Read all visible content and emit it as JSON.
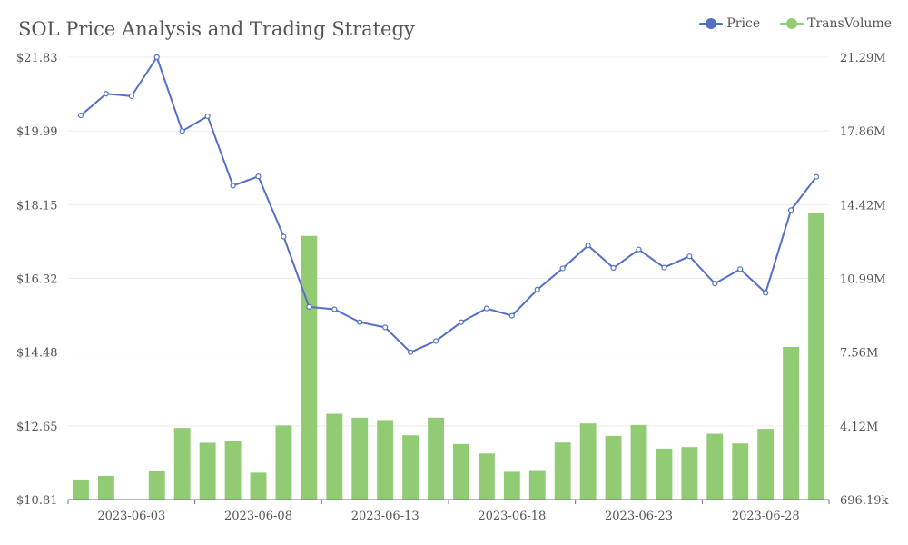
{
  "chart_data": {
    "type": "bar+line",
    "title": "SOL Price Analysis and Trading Strategy",
    "x": [
      "2023-06-01",
      "2023-06-02",
      "2023-06-03",
      "2023-06-04",
      "2023-06-05",
      "2023-06-06",
      "2023-06-07",
      "2023-06-08",
      "2023-06-09",
      "2023-06-10",
      "2023-06-11",
      "2023-06-12",
      "2023-06-13",
      "2023-06-14",
      "2023-06-15",
      "2023-06-16",
      "2023-06-17",
      "2023-06-18",
      "2023-06-19",
      "2023-06-20",
      "2023-06-21",
      "2023-06-22",
      "2023-06-23",
      "2023-06-24",
      "2023-06-25",
      "2023-06-26",
      "2023-06-27",
      "2023-06-28",
      "2023-06-29",
      "2023-06-30"
    ],
    "x_tick_labels": [
      "2023-06-03",
      "2023-06-08",
      "2023-06-13",
      "2023-06-18",
      "2023-06-23",
      "2023-06-28"
    ],
    "series": [
      {
        "name": "Price",
        "type": "line",
        "axis": "left",
        "color": "#5470c6",
        "values": [
          20.38,
          20.92,
          20.86,
          21.83,
          19.99,
          20.36,
          18.63,
          18.86,
          17.36,
          15.61,
          15.55,
          15.23,
          15.1,
          14.48,
          14.76,
          15.23,
          15.57,
          15.39,
          16.04,
          16.57,
          17.14,
          16.58,
          17.04,
          16.59,
          16.87,
          16.19,
          16.55,
          15.96,
          18.02,
          18.85
        ]
      },
      {
        "name": "TransVolume",
        "type": "bar",
        "axis": "right",
        "color": "#91cc75",
        "values": [
          1630000,
          1800000,
          696190,
          2050000,
          4030000,
          3340000,
          3440000,
          1950000,
          4150000,
          12970000,
          4690000,
          4510000,
          4400000,
          3690000,
          4510000,
          3280000,
          2840000,
          1990000,
          2070000,
          3350000,
          4240000,
          3660000,
          4170000,
          3070000,
          3140000,
          3760000,
          3310000,
          3990000,
          7800000,
          14030000
        ]
      }
    ],
    "y_left": {
      "min": 10.81,
      "max": 21.83,
      "tick_labels": [
        "$10.81",
        "$12.65",
        "$14.48",
        "$16.32",
        "$18.15",
        "$19.99",
        "$21.83"
      ]
    },
    "y_right": {
      "min": 696190,
      "max": 21290000,
      "tick_labels": [
        "696.19k",
        "4.12M",
        "7.56M",
        "10.99M",
        "14.42M",
        "17.86M",
        "21.29M"
      ]
    },
    "legend": {
      "placement": "top-right",
      "items": [
        "Price",
        "TransVolume"
      ]
    },
    "grid": true
  }
}
